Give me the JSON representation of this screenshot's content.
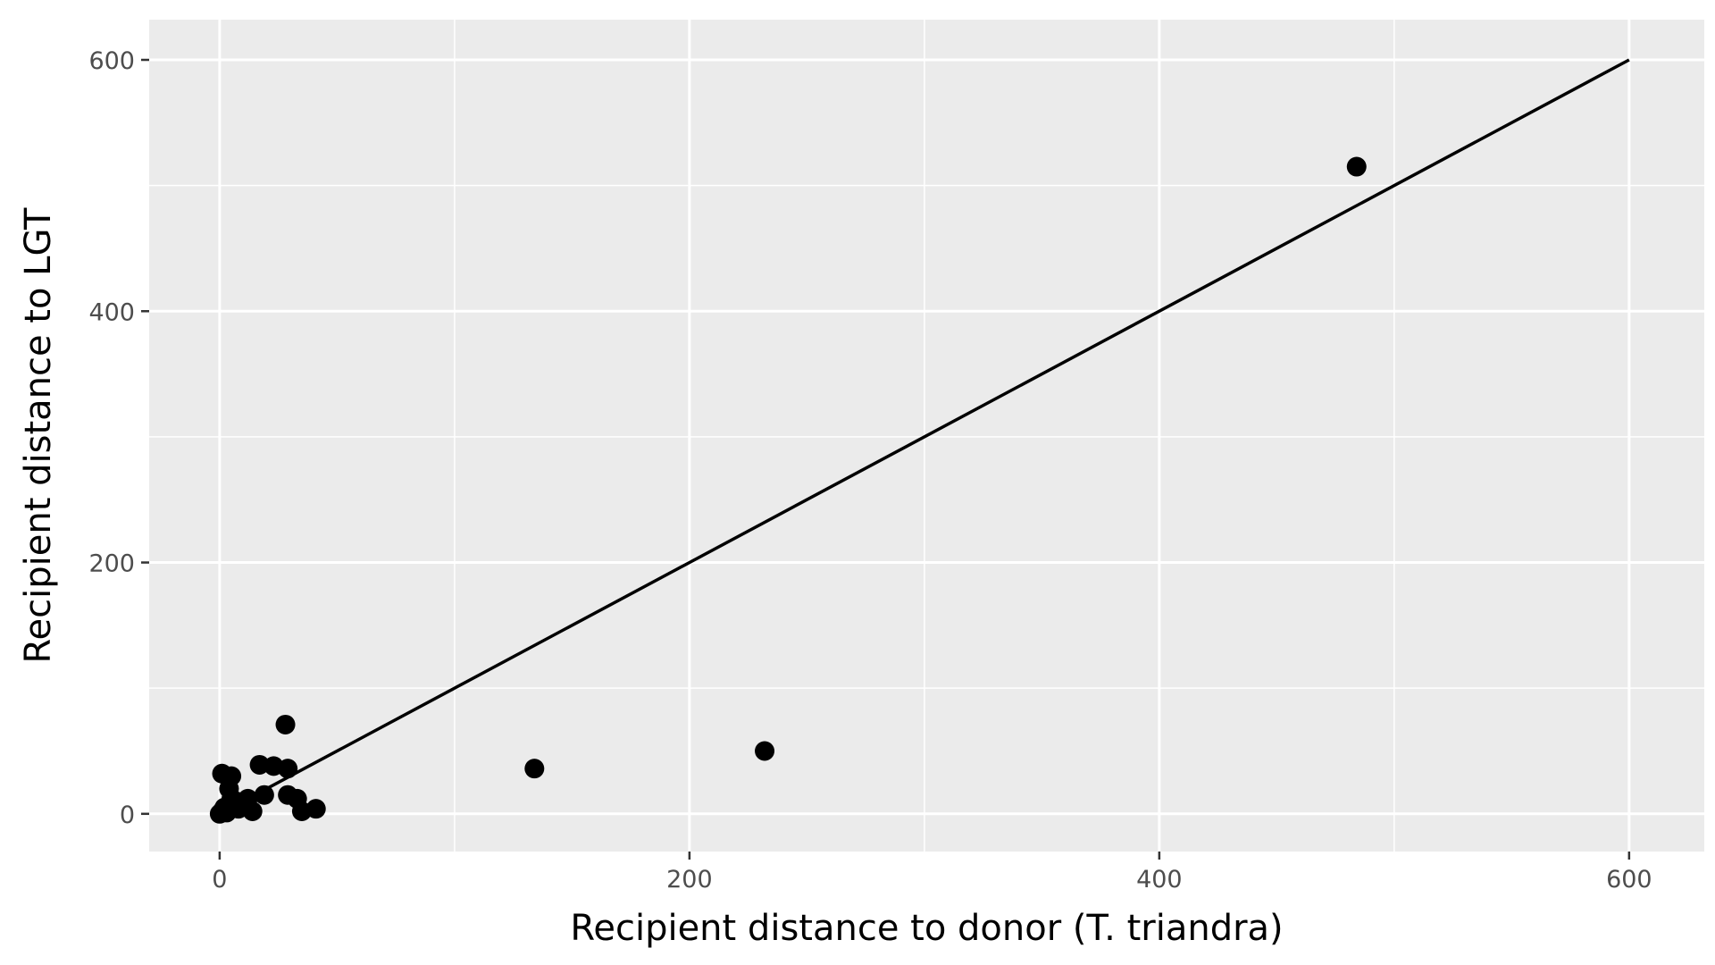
{
  "chart_data": {
    "type": "scatter",
    "title": "",
    "xlabel": "Recipient distance to donor (T. triandra)",
    "ylabel": "Recipient distance to LGT",
    "xlim": [
      -30,
      632
    ],
    "ylim": [
      -30,
      632
    ],
    "x_ticks": [
      0,
      200,
      400,
      600
    ],
    "y_ticks": [
      0,
      200,
      400,
      600
    ],
    "grid": true,
    "panel_background": "#ebebeb",
    "grid_color": "#ffffff",
    "point_color": "#000000",
    "line_color": "#000000",
    "reference_line": {
      "from": [
        0,
        0
      ],
      "to": [
        600,
        600
      ]
    },
    "points": [
      {
        "x": 0,
        "y": 0
      },
      {
        "x": 1,
        "y": 2
      },
      {
        "x": 2,
        "y": 5
      },
      {
        "x": 3,
        "y": 1
      },
      {
        "x": 1,
        "y": 32
      },
      {
        "x": 4,
        "y": 28
      },
      {
        "x": 5,
        "y": 30
      },
      {
        "x": 4,
        "y": 20
      },
      {
        "x": 5,
        "y": 12
      },
      {
        "x": 6,
        "y": 8
      },
      {
        "x": 7,
        "y": 10
      },
      {
        "x": 8,
        "y": 4
      },
      {
        "x": 10,
        "y": 7
      },
      {
        "x": 12,
        "y": 12
      },
      {
        "x": 14,
        "y": 2
      },
      {
        "x": 17,
        "y": 39
      },
      {
        "x": 19,
        "y": 15
      },
      {
        "x": 23,
        "y": 38
      },
      {
        "x": 28,
        "y": 71
      },
      {
        "x": 29,
        "y": 36
      },
      {
        "x": 29,
        "y": 15
      },
      {
        "x": 33,
        "y": 12
      },
      {
        "x": 35,
        "y": 2
      },
      {
        "x": 41,
        "y": 4
      },
      {
        "x": 134,
        "y": 36
      },
      {
        "x": 232,
        "y": 50
      },
      {
        "x": 484,
        "y": 515
      }
    ]
  }
}
